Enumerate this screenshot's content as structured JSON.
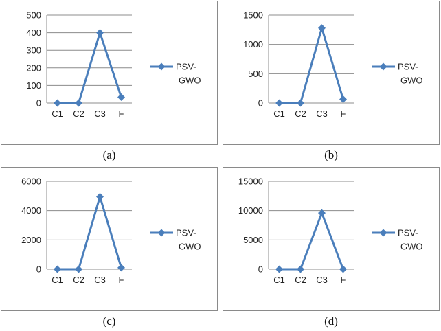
{
  "chart_data": [
    {
      "type": "line",
      "caption": "(a)",
      "categories": [
        "C1",
        "C2",
        "C3",
        "F"
      ],
      "series": [
        {
          "name": "PSV-GWO",
          "values": [
            0,
            0,
            400,
            33
          ]
        }
      ],
      "ylim": [
        0,
        500
      ],
      "yticks": [
        "0",
        "100",
        "200",
        "300",
        "400",
        "500"
      ],
      "grid": true,
      "legend_position": "right",
      "color": "#4a7ebb"
    },
    {
      "type": "line",
      "caption": "(b)",
      "categories": [
        "C1",
        "C2",
        "C3",
        "F"
      ],
      "series": [
        {
          "name": "PSV-GWO",
          "values": [
            0,
            0,
            1280,
            65
          ]
        }
      ],
      "ylim": [
        0,
        1500
      ],
      "yticks": [
        "0",
        "500",
        "1000",
        "1500"
      ],
      "grid": true,
      "legend_position": "right",
      "color": "#4a7ebb"
    },
    {
      "type": "line",
      "caption": "(c)",
      "categories": [
        "C1",
        "C2",
        "C3",
        "F"
      ],
      "series": [
        {
          "name": "PSV-GWO",
          "values": [
            0,
            0,
            4950,
            100
          ]
        }
      ],
      "ylim": [
        0,
        6000
      ],
      "yticks": [
        "0",
        "2000",
        "4000",
        "6000"
      ],
      "grid": true,
      "legend_position": "right",
      "color": "#4a7ebb"
    },
    {
      "type": "line",
      "caption": "(d)",
      "categories": [
        "C1",
        "C2",
        "C3",
        "F"
      ],
      "series": [
        {
          "name": "PSV-GWO",
          "values": [
            0,
            0,
            9600,
            0
          ]
        }
      ],
      "ylim": [
        0,
        15000
      ],
      "yticks": [
        "0",
        "5000",
        "10000",
        "15000"
      ],
      "grid": true,
      "legend_position": "right",
      "color": "#4a7ebb"
    }
  ]
}
